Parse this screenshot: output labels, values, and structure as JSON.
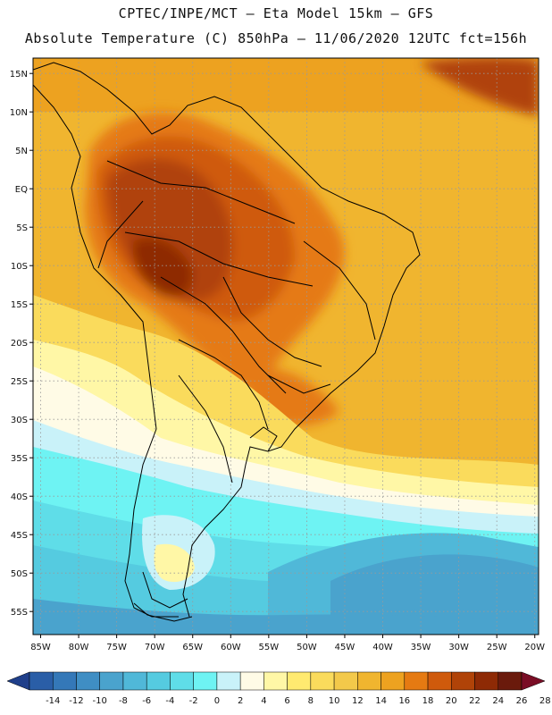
{
  "header": {
    "line1": "CPTEC/INPE/MCT –  Eta Model 15km – GFS",
    "line2": "Absolute Temperature (C) 850hPa – 11/06/2020 12UTC fct=156h"
  },
  "map": {
    "lon_labels": [
      "85W",
      "80W",
      "75W",
      "70W",
      "65W",
      "60W",
      "55W",
      "50W",
      "45W",
      "40W",
      "35W",
      "30W",
      "25W",
      "20W"
    ],
    "lat_labels": [
      "15N",
      "10N",
      "5N",
      "EQ",
      "5S",
      "10S",
      "15S",
      "20S",
      "25S",
      "30S",
      "35S",
      "40S",
      "45S",
      "50S",
      "55S"
    ],
    "lon_range": [
      -86,
      -19.5
    ],
    "lat_range": [
      17,
      -58
    ]
  },
  "colorbar": {
    "labels": [
      "-14",
      "-12",
      "-10",
      "-8",
      "-6",
      "-4",
      "-2",
      "0",
      "2",
      "4",
      "6",
      "8",
      "10",
      "12",
      "14",
      "16",
      "18",
      "20",
      "22",
      "24",
      "26",
      "28"
    ],
    "colors": [
      "#1f3f8a",
      "#2a5ea7",
      "#3478b8",
      "#3f8ec4",
      "#4aa3cd",
      "#50b8d8",
      "#55cbe0",
      "#5fdde8",
      "#6ef3f3",
      "#c9f2f9",
      "#fffbe6",
      "#fff7a6",
      "#ffea70",
      "#fadb5c",
      "#f3c94a",
      "#f0b52f",
      "#eda220",
      "#e57a12",
      "#cf5a0c",
      "#b04308",
      "#8e2a05",
      "#6a1a0c",
      "#7a0d25"
    ]
  }
}
